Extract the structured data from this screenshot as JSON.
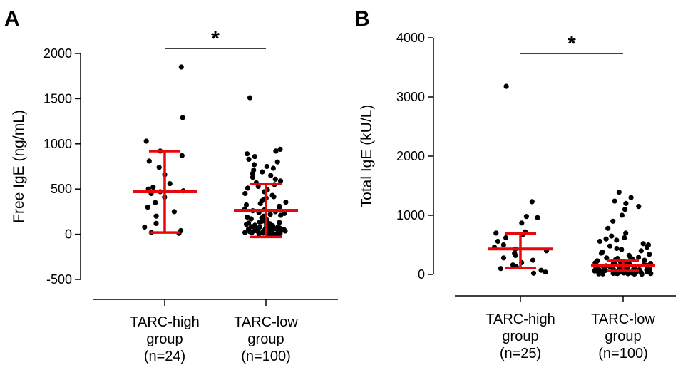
{
  "colors": {
    "axis": "#000000",
    "points": "#000000",
    "summary": "#e8070b"
  },
  "chart_data": [
    {
      "panel": "A",
      "type": "scatter",
      "ylabel": "Free IgE (ng/mL)",
      "ylim": [
        -500,
        2000
      ],
      "yticks": [
        -500,
        0,
        500,
        1000,
        1500,
        2000
      ],
      "grid": false,
      "categories": [
        "TARC-high group (n=24)",
        "TARC-low group (n=100)"
      ],
      "category_lines": [
        [
          "TARC-high",
          "group",
          "(n=24)"
        ],
        [
          "TARC-low",
          "group",
          "(n=100)"
        ]
      ],
      "summary": [
        {
          "center": 470,
          "lower": 20,
          "upper": 920
        },
        {
          "center": 265,
          "lower": -30,
          "upper": 555
        }
      ],
      "significance": {
        "label": "*",
        "between": [
          0,
          1
        ]
      },
      "series": [
        {
          "values": [
            1850,
            1290,
            1030,
            920,
            870,
            810,
            740,
            660,
            560,
            520,
            500,
            480,
            470,
            450,
            410,
            350,
            300,
            250,
            200,
            120,
            80,
            40,
            20,
            10
          ]
        },
        {
          "values": [
            1510,
            940,
            920,
            890,
            860,
            830,
            800,
            770,
            750,
            730,
            710,
            690,
            670,
            650,
            630,
            610,
            590,
            570,
            550,
            530,
            510,
            490,
            470,
            450,
            430,
            415,
            400,
            385,
            370,
            355,
            340,
            325,
            310,
            295,
            280,
            270,
            260,
            250,
            240,
            230,
            220,
            210,
            200,
            190,
            180,
            170,
            160,
            150,
            145,
            140,
            135,
            130,
            125,
            120,
            115,
            110,
            105,
            100,
            95,
            90,
            85,
            80,
            78,
            75,
            72,
            70,
            68,
            65,
            62,
            60,
            58,
            55,
            52,
            50,
            48,
            46,
            44,
            42,
            40,
            38,
            36,
            34,
            32,
            30,
            28,
            26,
            24,
            22,
            20,
            18,
            16,
            14,
            12,
            10,
            8,
            6,
            5,
            4,
            3,
            2
          ]
        }
      ]
    },
    {
      "panel": "B",
      "type": "scatter",
      "ylabel": "Total IgE (kU/L)",
      "ylim": [
        0,
        4000
      ],
      "yticks": [
        0,
        1000,
        2000,
        3000,
        4000
      ],
      "grid": false,
      "categories": [
        "TARC-high group (n=25)",
        "TARC-low group (n=100)"
      ],
      "category_lines": [
        [
          "TARC-high",
          "group",
          "(n=25)"
        ],
        [
          "TARC-low",
          "group",
          "(n=100)"
        ]
      ],
      "summary": [
        {
          "center": 430,
          "lower": 110,
          "upper": 690
        },
        {
          "center": 150,
          "lower": 60,
          "upper": 230
        }
      ],
      "significance": {
        "label": "*",
        "between": [
          0,
          1
        ]
      },
      "series": [
        {
          "values": [
            3180,
            1230,
            980,
            960,
            870,
            720,
            700,
            670,
            620,
            560,
            500,
            460,
            430,
            400,
            360,
            320,
            280,
            240,
            200,
            160,
            130,
            100,
            70,
            40,
            20
          ]
        },
        {
          "values": [
            1390,
            1300,
            1240,
            1200,
            1150,
            1100,
            1000,
            900,
            780,
            700,
            650,
            620,
            600,
            580,
            560,
            520,
            500,
            480,
            460,
            440,
            420,
            400,
            380,
            360,
            340,
            320,
            300,
            290,
            280,
            270,
            260,
            250,
            240,
            230,
            220,
            210,
            200,
            195,
            190,
            185,
            180,
            175,
            170,
            165,
            160,
            155,
            150,
            145,
            140,
            135,
            130,
            125,
            120,
            115,
            110,
            105,
            100,
            98,
            95,
            92,
            90,
            88,
            85,
            82,
            80,
            78,
            75,
            72,
            70,
            68,
            65,
            62,
            60,
            58,
            55,
            52,
            50,
            48,
            46,
            44,
            42,
            40,
            38,
            36,
            34,
            32,
            30,
            28,
            26,
            24,
            22,
            20,
            18,
            16,
            14,
            12,
            10,
            8,
            6,
            4
          ]
        }
      ]
    }
  ]
}
